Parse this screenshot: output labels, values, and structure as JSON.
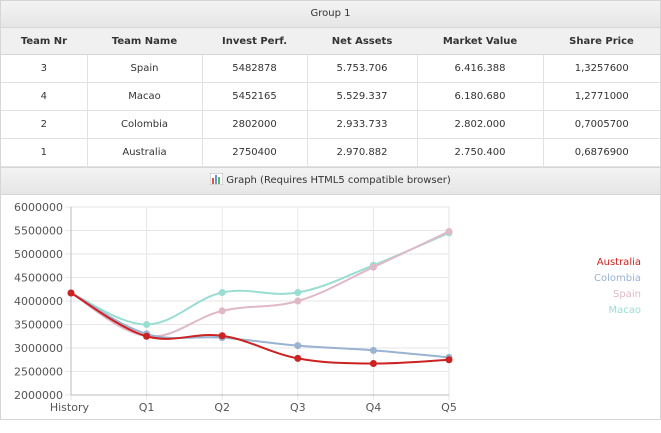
{
  "group": {
    "title": "Group 1"
  },
  "table": {
    "headers": [
      "Team Nr",
      "Team Name",
      "Invest Perf.",
      "Net Assets",
      "Market Value",
      "Share Price"
    ],
    "rows": [
      [
        "3",
        "Spain",
        "5482878",
        "5.753.706",
        "6.416.388",
        "1,3257600"
      ],
      [
        "4",
        "Macao",
        "5452165",
        "5.529.337",
        "6.180.680",
        "1,2771000"
      ],
      [
        "2",
        "Colombia",
        "2802000",
        "2.933.733",
        "2.802.000",
        "0,7005700"
      ],
      [
        "1",
        "Australia",
        "2750400",
        "2.970.882",
        "2.750.400",
        "0,6876900"
      ]
    ]
  },
  "graph": {
    "title": "Graph (Requires HTML5 compatible browser)",
    "icon": "bar-chart-icon"
  },
  "chart_data": {
    "type": "line",
    "categories": [
      "History",
      "Q1",
      "Q2",
      "Q3",
      "Q4",
      "Q5"
    ],
    "ylim": [
      2000000,
      6000000
    ],
    "yticks": [
      "2000000",
      "2500000",
      "3000000",
      "3500000",
      "4000000",
      "4500000",
      "5000000",
      "5500000",
      "6000000"
    ],
    "grid": true,
    "legend_position": "right",
    "series": [
      {
        "name": "Australia",
        "color": "#cc2222",
        "values": [
          4170000,
          3250000,
          3260000,
          2780000,
          2670000,
          2750000
        ]
      },
      {
        "name": "Colombia",
        "color": "#99b3d1",
        "values": [
          4170000,
          3300000,
          3220000,
          3050000,
          2950000,
          2800000
        ]
      },
      {
        "name": "Spain",
        "color": "#e0b8c8",
        "values": [
          4170000,
          3250000,
          3790000,
          4000000,
          4720000,
          5480000
        ]
      },
      {
        "name": "Macao",
        "color": "#99ddd3",
        "values": [
          4170000,
          3500000,
          4180000,
          4180000,
          4760000,
          5450000
        ]
      }
    ]
  }
}
